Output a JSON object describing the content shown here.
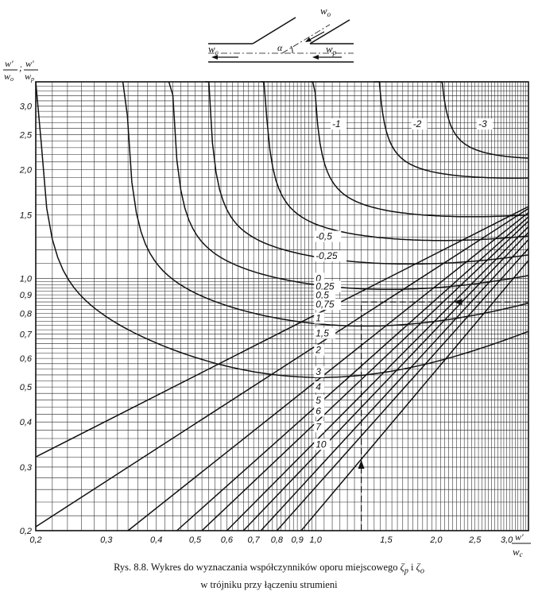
{
  "chart_data": {
    "type": "line",
    "xscale": "log",
    "yscale": "log",
    "xlim": [
      0.2,
      3.4
    ],
    "ylim": [
      0.2,
      3.5
    ],
    "x_ticks": [
      "0,2",
      "0,3",
      "0,4",
      "0,5",
      "0,6",
      "0,7",
      "0,8",
      "0,9",
      "1,0",
      "1,5",
      "2,0",
      "2,5",
      "3,0"
    ],
    "y_ticks": [
      "0,2",
      "0,3",
      "0,4",
      "0,5",
      "0,6",
      "0,7",
      "0,8",
      "0,9",
      "1,0",
      "1,5",
      "2,0",
      "2,5",
      "3,0"
    ],
    "xlabel_num": "w'",
    "xlabel_den": "w_c",
    "ylabel_num_1": "w'",
    "ylabel_den_1": "w_o",
    "ylabel_num_2": "w'",
    "ylabel_den_2": "w_p",
    "grid": true,
    "series": [
      {
        "label": "-3",
        "family": "u",
        "xmin": 2.0,
        "xmax": 3.4,
        "ymin": 2.05
      },
      {
        "label": "-2",
        "family": "u",
        "xmin": 1.4,
        "xmax": 3.4,
        "ymin": 1.82
      },
      {
        "label": "-1",
        "family": "u",
        "xmin": 0.97,
        "xmax": 3.4,
        "ymin": 1.42
      },
      {
        "label": "-0,5",
        "family": "u",
        "xmin": 0.73,
        "xmax": 3.4,
        "ymin": 1.22
      },
      {
        "label": "-0,25",
        "family": "u",
        "xmin": 0.53,
        "xmax": 3.4,
        "ymin": 1.05
      },
      {
        "label": "0",
        "family": "u",
        "xmin": 0.43,
        "xmax": 3.4,
        "ymin": 0.89
      },
      {
        "label": "0,25",
        "family": "u",
        "xmin": 0.33,
        "xmax": 3.4,
        "ymin": 0.7
      },
      {
        "label": "0,5",
        "family": "u",
        "xmin": 0.2,
        "xmax": 3.4,
        "ymin": 0.5
      },
      {
        "label": "0,75",
        "family": "s",
        "points": [
          [
            0.2,
            0.32
          ],
          [
            3.4,
            1.58
          ]
        ]
      },
      {
        "label": "1",
        "family": "s",
        "points": [
          [
            0.2,
            0.205
          ],
          [
            3.4,
            1.56
          ]
        ]
      },
      {
        "label": "1,5",
        "family": "s",
        "points": [
          [
            0.34,
            0.2
          ],
          [
            3.4,
            1.52
          ]
        ]
      },
      {
        "label": "2",
        "family": "s",
        "points": [
          [
            0.45,
            0.2
          ],
          [
            3.4,
            1.48
          ]
        ]
      },
      {
        "label": "3",
        "family": "s",
        "points": [
          [
            0.52,
            0.2
          ],
          [
            3.4,
            1.44
          ]
        ]
      },
      {
        "label": "4",
        "family": "s",
        "points": [
          [
            0.6,
            0.2
          ],
          [
            3.4,
            1.39
          ]
        ]
      },
      {
        "label": "5",
        "family": "s",
        "points": [
          [
            0.66,
            0.2
          ],
          [
            3.4,
            1.34
          ]
        ]
      },
      {
        "label": "6",
        "family": "s",
        "points": [
          [
            0.73,
            0.2
          ],
          [
            3.4,
            1.28
          ]
        ]
      },
      {
        "label": "7",
        "family": "s",
        "points": [
          [
            0.8,
            0.2
          ],
          [
            3.4,
            1.21
          ]
        ]
      },
      {
        "label": "10",
        "family": "s",
        "points": [
          [
            0.92,
            0.2
          ],
          [
            3.4,
            1.12
          ]
        ]
      }
    ],
    "example_path": [
      [
        1.3,
        0.2
      ],
      [
        1.3,
        0.86
      ],
      [
        3.4,
        0.86
      ]
    ]
  },
  "diagram": {
    "labels": {
      "w_o": "w_o",
      "alpha": "α",
      "w_c": "w_c",
      "w_p": "w_p"
    }
  },
  "caption": {
    "line1_prefix": "Rys. 8.8. Wykres do wyznaczania współczynników oporu miejscowego ",
    "zeta_p": "ζ_p",
    "conj": " i ",
    "zeta_o": "ζ_o",
    "line2": "w trójniku przy łączeniu strumieni"
  }
}
